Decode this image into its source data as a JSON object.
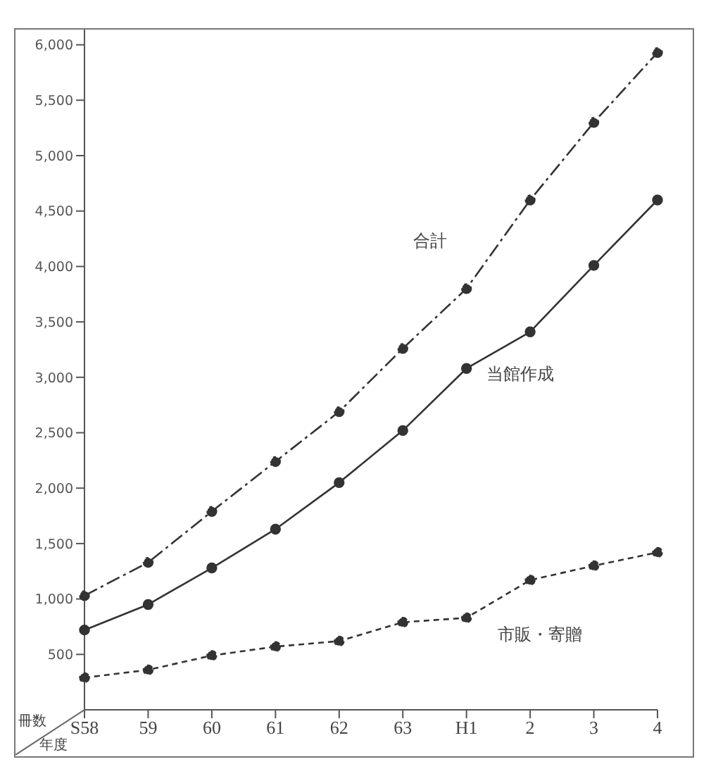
{
  "chart_data": {
    "type": "line",
    "xlabel": "年度",
    "ylabel": "冊数",
    "categories": [
      "S58",
      "59",
      "60",
      "61",
      "62",
      "63",
      "H1",
      "2",
      "3",
      "4"
    ],
    "series": [
      {
        "name": "合計",
        "color": "#333333",
        "line_style": "dashed",
        "values": [
          1030,
          1330,
          1790,
          2240,
          2690,
          3260,
          3800,
          4600,
          5300,
          5930
        ]
      },
      {
        "name": "当館作成",
        "color": "#333333",
        "line_style": "solid",
        "values": [
          720,
          950,
          1280,
          1630,
          2050,
          2520,
          3080,
          3410,
          4010,
          4600
        ]
      },
      {
        "name": "市販・寄贈",
        "color": "#333333",
        "line_style": "dotted",
        "values": [
          290,
          360,
          490,
          570,
          620,
          790,
          830,
          1170,
          1300,
          1420
        ]
      }
    ],
    "ylim": [
      0,
      6150
    ],
    "yticks": [
      500,
      {
        "value": 1000,
        "label": "1,000"
      },
      {
        "value": 1500,
        "label": "1,500"
      },
      {
        "value": 2000,
        "label": "2,000"
      },
      {
        "value": 2500,
        "label": "2,500"
      },
      {
        "value": 3000,
        "label": "3,000"
      },
      {
        "value": 3500,
        "label": "3,500"
      },
      {
        "value": 4000,
        "label": "4,000"
      },
      {
        "value": 4500,
        "label": "4,500"
      },
      {
        "value": 5000,
        "label": "5,000"
      },
      {
        "value": 5500,
        "label": "5,500"
      },
      {
        "value": 6000,
        "label": "6,000"
      }
    ],
    "grid": false,
    "legend": false,
    "marker": "circle"
  }
}
